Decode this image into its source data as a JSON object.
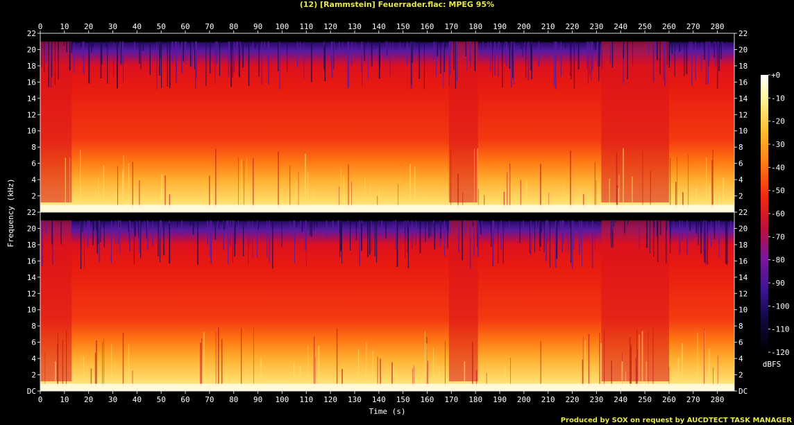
{
  "header": {
    "title": "(12) [Rammstein] Feuerrader.flac: MPEG 95%"
  },
  "footer": {
    "credit": "Produced by SOX on request by AUCDTECT TASK MANAGER"
  },
  "chart_data": {
    "type": "heatmap",
    "title": "(12) [Rammstein] Feuerrader.flac: MPEG 95%",
    "xlabel": "Time (s)",
    "ylabel": "Frequency (kHz)",
    "x_ticks": [
      "0",
      "10",
      "20",
      "30",
      "40",
      "50",
      "60",
      "70",
      "80",
      "90",
      "100",
      "110",
      "120",
      "130",
      "140",
      "150",
      "160",
      "170",
      "180",
      "190",
      "200",
      "210",
      "220",
      "230",
      "240",
      "250",
      "260",
      "270",
      "280"
    ],
    "y_ticks": [
      "DC",
      "2",
      "4",
      "6",
      "8",
      "10",
      "12",
      "14",
      "16",
      "18",
      "20",
      "22"
    ],
    "xlim": [
      0,
      287
    ],
    "ylim": [
      0,
      22
    ],
    "channels": 2,
    "colorbar": {
      "label": "dBFS",
      "ticks": [
        "+0",
        "-10",
        "-20",
        "-30",
        "-40",
        "-50",
        "-60",
        "-70",
        "-80",
        "-90",
        "-100",
        "-110",
        "-120"
      ],
      "range": [
        -120,
        0
      ]
    },
    "features": {
      "cutoff_khz": 21,
      "quiet_intervals_s": [
        [
          0,
          13
        ],
        [
          169,
          181
        ],
        [
          232,
          260
        ]
      ],
      "band_colors": [
        "#ffffe0",
        "#fff06a",
        "#ffc23a",
        "#ff7a1a",
        "#f02a10",
        "#d0102a",
        "#5a1aa0",
        "#180a55",
        "#000000"
      ]
    }
  }
}
